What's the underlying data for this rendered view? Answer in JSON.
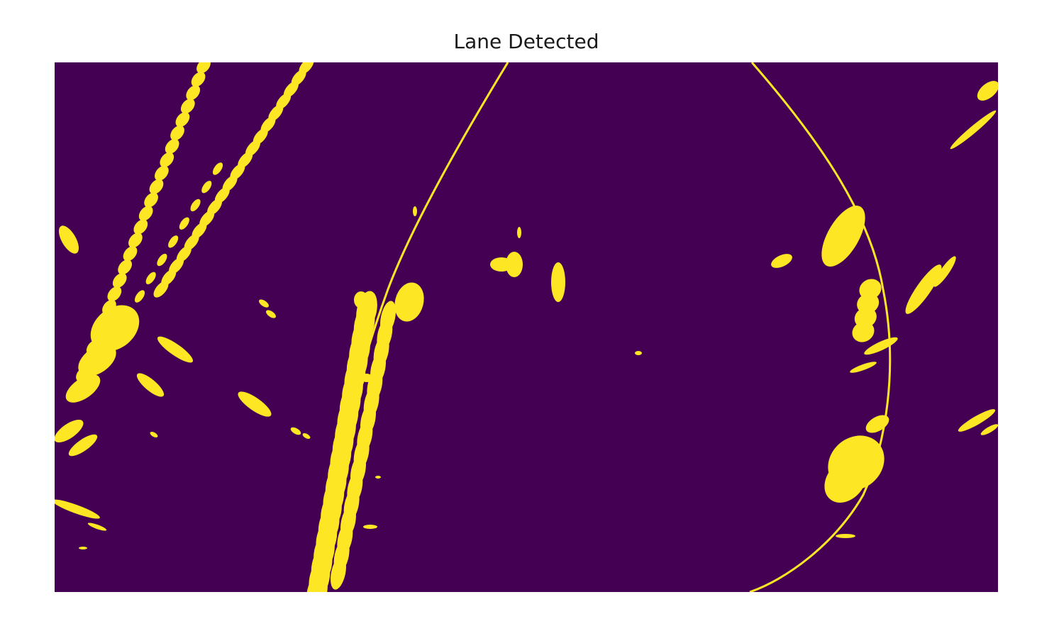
{
  "title": "Lane Detected",
  "colors": {
    "background": "#440154",
    "foreground": "#fde725",
    "lane_line": "#fde725"
  },
  "colormap": "viridis",
  "image_kind": "binary warped lane mask with fitted lane polylines"
}
